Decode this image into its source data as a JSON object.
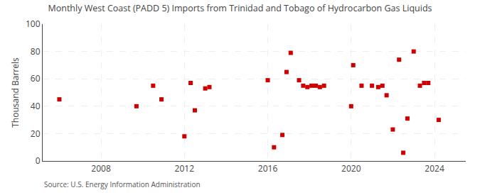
{
  "chart_data": {
    "type": "scatter",
    "title": "Monthly West Coast (PADD 5) Imports from Trinidad and Tobago of Hydrocarbon Gas Liquids",
    "ylabel": "Thousand Barrels",
    "annotations": [
      "Source: U.S. Energy Information Administration"
    ],
    "x": [
      2006.0,
      2009.7,
      2010.5,
      2010.9,
      2012.0,
      2012.3,
      2012.5,
      2013.0,
      2013.2,
      2016.0,
      2016.3,
      2016.7,
      2016.9,
      2017.1,
      2017.5,
      2017.7,
      2017.9,
      2018.1,
      2018.3,
      2018.5,
      2018.7,
      2020.0,
      2020.1,
      2020.5,
      2021.0,
      2021.3,
      2021.5,
      2021.7,
      2022.0,
      2022.3,
      2022.5,
      2022.7,
      2023.0,
      2023.3,
      2023.5,
      2023.7,
      2024.2
    ],
    "values": [
      45,
      40,
      55,
      45,
      18,
      57,
      37,
      53,
      54,
      59,
      10,
      19,
      65,
      79,
      59,
      55,
      54,
      55,
      55,
      54,
      55,
      40,
      70,
      55,
      55,
      54,
      55,
      48,
      23,
      74,
      6,
      31,
      80,
      55,
      57,
      57,
      30
    ],
    "color": "#cc0000",
    "marker": "square",
    "xlim": [
      2005.2,
      2025.5
    ],
    "xticks": [
      2008,
      2012,
      2016,
      2020,
      2024
    ],
    "ylim": [
      0,
      100
    ],
    "yticks": [
      0,
      20,
      40,
      60,
      80,
      100
    ],
    "grid": true
  }
}
